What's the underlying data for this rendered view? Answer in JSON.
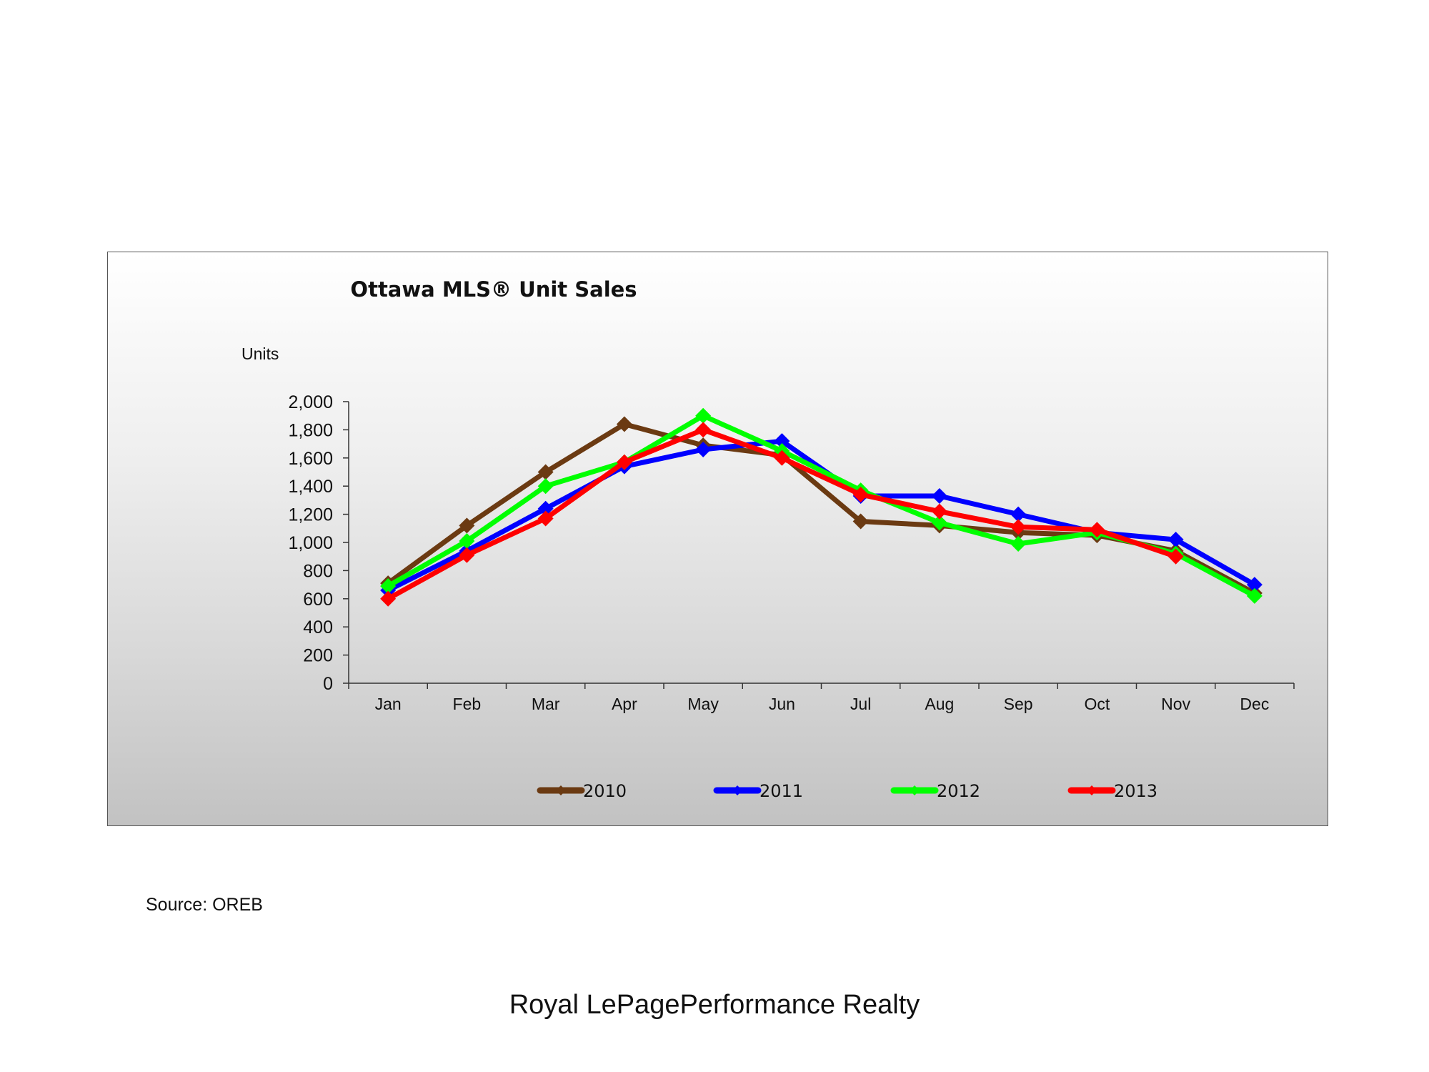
{
  "chart_data": {
    "type": "line",
    "title": "Ottawa MLS® Unit Sales",
    "ylabel": "Units",
    "xlabel": "",
    "ylim": [
      0,
      2000
    ],
    "yticks": [
      0,
      200,
      400,
      600,
      800,
      1000,
      1200,
      1400,
      1600,
      1800,
      2000
    ],
    "ytick_labels": [
      "0",
      "200",
      "400",
      "600",
      "800",
      "1,000",
      "1,200",
      "1,400",
      "1,600",
      "1,800",
      "2,000"
    ],
    "categories": [
      "Jan",
      "Feb",
      "Mar",
      "Apr",
      "May",
      "Jun",
      "Jul",
      "Aug",
      "Sep",
      "Oct",
      "Nov",
      "Dec"
    ],
    "grid": false,
    "legend_position": "bottom",
    "series": [
      {
        "name": "2010",
        "color": "#6b3a12",
        "values": [
          710,
          1120,
          1500,
          1840,
          1690,
          1620,
          1150,
          1120,
          1070,
          1050,
          940,
          640
        ]
      },
      {
        "name": "2011",
        "color": "#0000ff",
        "values": [
          660,
          940,
          1240,
          1540,
          1660,
          1720,
          1330,
          1330,
          1200,
          1070,
          1020,
          700
        ]
      },
      {
        "name": "2012",
        "color": "#00ff00",
        "values": [
          690,
          1010,
          1400,
          1570,
          1900,
          1650,
          1370,
          1140,
          990,
          1070,
          920,
          620
        ]
      },
      {
        "name": "2013",
        "color": "#ff0000",
        "values": [
          600,
          910,
          1170,
          1570,
          1800,
          1600,
          1340,
          1220,
          1110,
          1090,
          900,
          null
        ]
      }
    ]
  },
  "source_text": "Source: OREB",
  "footer_text": "Royal LePagePerformance Realty"
}
